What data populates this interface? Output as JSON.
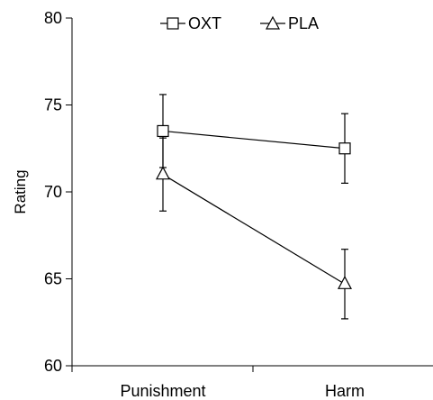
{
  "chart_data": {
    "type": "line",
    "categories": [
      "Punishment",
      "Harm"
    ],
    "ylabel": "Rating",
    "xlabel": "",
    "ylim": [
      60,
      80
    ],
    "yticks": [
      60,
      65,
      70,
      75,
      80
    ],
    "legend_position": "top",
    "series": [
      {
        "name": "OXT",
        "marker": "square",
        "values": [
          73.5,
          72.5
        ],
        "error": [
          2.1,
          2.0
        ]
      },
      {
        "name": "PLA",
        "marker": "triangle",
        "values": [
          71.0,
          64.7
        ],
        "error": [
          2.1,
          2.0
        ]
      }
    ]
  }
}
